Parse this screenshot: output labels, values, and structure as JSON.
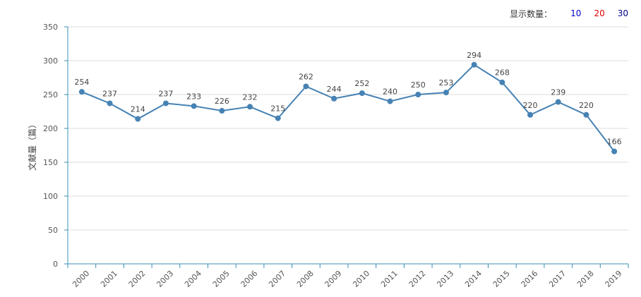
{
  "display_count": {
    "label": "显示数量：",
    "options": [
      {
        "value": "10",
        "color": "#0000cc"
      },
      {
        "value": "20",
        "color": "#dd0000"
      },
      {
        "value": "30",
        "color": "#00008b"
      }
    ]
  },
  "chart_data": {
    "type": "line",
    "title": "",
    "xlabel": "",
    "ylabel": "文献量（篇）",
    "ylim": [
      0,
      350
    ],
    "yticks": [
      0,
      50,
      100,
      150,
      200,
      250,
      300,
      350
    ],
    "grid": true,
    "series_color": "#4682b4",
    "axis_color": "#3a8fb7",
    "categories": [
      "2000",
      "2001",
      "2002",
      "2003",
      "2004",
      "2005",
      "2006",
      "2007",
      "2008",
      "2009",
      "2010",
      "2011",
      "2012",
      "2013",
      "2014",
      "2015",
      "2016",
      "2017",
      "2018",
      "2019"
    ],
    "series": [
      {
        "name": "文献量",
        "values": [
          254,
          237,
          214,
          237,
          233,
          226,
          232,
          215,
          262,
          244,
          252,
          240,
          250,
          253,
          294,
          268,
          220,
          239,
          220,
          166
        ]
      }
    ]
  }
}
